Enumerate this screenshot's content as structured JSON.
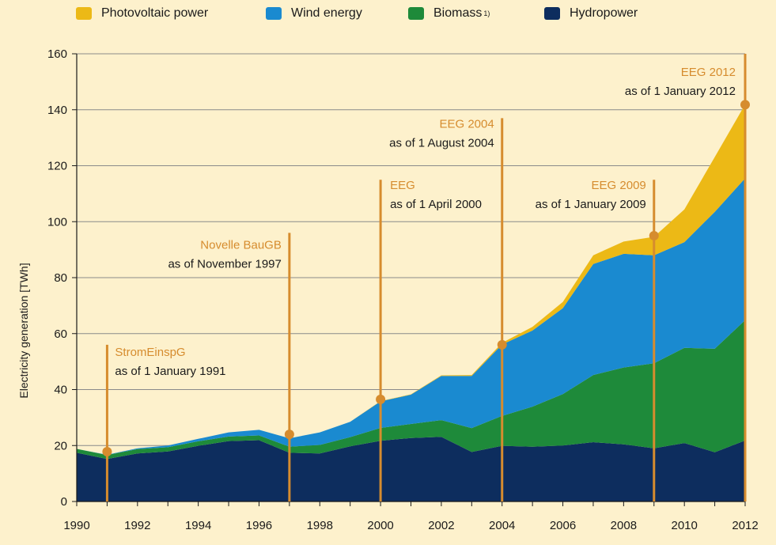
{
  "chart_data": {
    "type": "area",
    "title": "",
    "xlabel": "",
    "ylabel": "Electricity generation [TWh]",
    "ylim": [
      0,
      160
    ],
    "yticks": [
      "0",
      "20",
      "40",
      "60",
      "80",
      "100",
      "120",
      "140",
      "160"
    ],
    "xticks": [
      "1990",
      "1992",
      "1994",
      "1996",
      "1998",
      "2000",
      "2002",
      "2004",
      "2006",
      "2008",
      "2010",
      "2012"
    ],
    "x": [
      1990,
      1991,
      1992,
      1993,
      1994,
      1995,
      1996,
      1997,
      1998,
      1999,
      2000,
      2001,
      2002,
      2003,
      2004,
      2005,
      2006,
      2007,
      2008,
      2009,
      2010,
      2011,
      2012
    ],
    "stacked": true,
    "grid": "horizontal",
    "legend_position": "top",
    "series": [
      {
        "name": "Hydropower",
        "color": "#0d2d5e",
        "values": [
          17.4,
          15.2,
          17.2,
          17.9,
          19.9,
          21.6,
          21.9,
          17.4,
          17.2,
          19.7,
          21.7,
          22.7,
          23.1,
          17.7,
          19.9,
          19.6,
          20.0,
          21.2,
          20.4,
          19.0,
          20.9,
          17.6,
          21.8
        ]
      },
      {
        "name": "Biomass",
        "footnote": "1)",
        "color": "#1e8a3a",
        "values": [
          1.4,
          1.4,
          1.5,
          1.5,
          1.6,
          1.6,
          1.7,
          2.2,
          3.0,
          3.3,
          4.6,
          5.0,
          6.0,
          8.5,
          10.7,
          14.3,
          18.4,
          24.0,
          27.5,
          30.4,
          34.0,
          37.0,
          43.0
        ]
      },
      {
        "name": "Wind energy",
        "color": "#1a8ad0",
        "values": [
          0.0,
          0.1,
          0.3,
          0.6,
          0.9,
          1.5,
          2.0,
          3.0,
          4.5,
          5.5,
          9.5,
          10.5,
          15.8,
          18.7,
          25.5,
          27.2,
          30.7,
          39.7,
          40.6,
          38.6,
          37.8,
          48.9,
          50.7
        ]
      },
      {
        "name": "Photovoltaic power",
        "color": "#ecb916",
        "values": [
          0,
          0,
          0,
          0,
          0,
          0,
          0,
          0,
          0,
          0,
          0.1,
          0.1,
          0.2,
          0.3,
          0.6,
          1.3,
          2.2,
          3.1,
          4.4,
          6.6,
          11.7,
          19.6,
          26.4
        ]
      }
    ],
    "annotations": [
      {
        "year": 1991,
        "top": 56,
        "marker": 17.8,
        "name": "StromEinspG",
        "date": "as of 1 January 1991"
      },
      {
        "year": 1997,
        "top": 96,
        "marker": 24,
        "name": "Novelle BauGB",
        "date": "as of November 1997"
      },
      {
        "year": 2000,
        "top": 115,
        "marker": 36.5,
        "name": "EEG",
        "date": "as of 1 April 2000"
      },
      {
        "year": 2004,
        "top": 137,
        "marker": 56,
        "name": "EEG 2004",
        "date": "as of 1 August 2004"
      },
      {
        "year": 2009,
        "top": 115,
        "marker": 95,
        "name": "EEG 2009",
        "date": "as of 1 January 2009"
      },
      {
        "year": 2012,
        "top": 160,
        "marker": 141.8,
        "name": "EEG 2012",
        "date": "as of 1 January 2012"
      }
    ],
    "annotation_color": "#d68c2e"
  },
  "legend": [
    {
      "label": "Photovoltaic power",
      "color": "#ecb916",
      "sup": ""
    },
    {
      "label": "Wind energy",
      "color": "#1a8ad0",
      "sup": ""
    },
    {
      "label": "Biomass",
      "color": "#1e8a3a",
      "sup": "1)"
    },
    {
      "label": "Hydropower",
      "color": "#0d2d5e",
      "sup": ""
    }
  ]
}
